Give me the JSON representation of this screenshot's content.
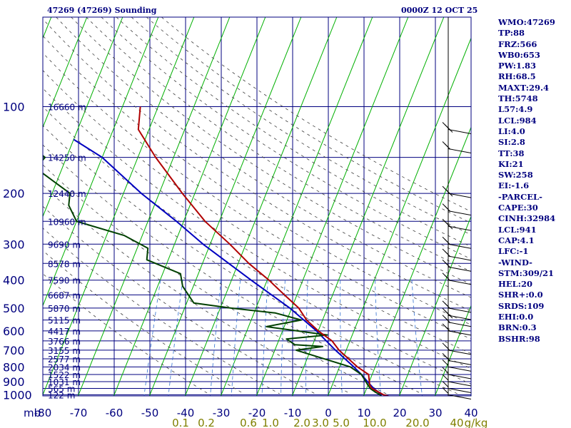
{
  "header": {
    "station": "47269 (47269) Sounding",
    "time": "0000Z 12 OCT 25"
  },
  "indices": [
    "WMO:47269",
    "TP:88",
    "FRZ:566",
    "WB0:653",
    "PW:1.83",
    "RH:68.5",
    "MAXT:29.4",
    "TH:5748",
    "L57:4.9",
    "LCL:984",
    "LI:4.0",
    "SI:2.8",
    "TT:38",
    "KI:21",
    "SW:258",
    "EI:-1.6",
    "-PARCEL-",
    "CAPE:30",
    "CINH:32984",
    "LCL:941",
    "CAP:4.1",
    "LFC:-1",
    "-WIND-",
    "STM:309/21",
    "HEL:20",
    "SHR+:0.0",
    "SRDS:109",
    "EHI:0.0",
    "BRN:0.3",
    "BSHR:98"
  ],
  "colors": {
    "grid": "#00007f",
    "isotherm": "#00b000",
    "temperature": "#b00000",
    "dewpoint": "#004000",
    "parcel": "#0000c0",
    "mixing_ratio": "#3070d0",
    "dry_adiabat": "#404040",
    "mixing_label": "#7f7f00"
  },
  "chart_data": {
    "type": "line",
    "title": "",
    "xlabel": "",
    "ylabel": "mb",
    "pressure_ticks": [
      100,
      200,
      300,
      400,
      500,
      600,
      700,
      800,
      900,
      1000
    ],
    "temperature_ticks": [
      -80,
      -70,
      -60,
      -50,
      -40,
      -30,
      -20,
      -10,
      0,
      10,
      20,
      30,
      40
    ],
    "mixing_ratio_labels": [
      "0.1",
      "0.2",
      "0.6",
      "1.0",
      "2.0",
      "3.0",
      "5.0",
      "10.0",
      "20.0",
      "40",
      "g/kg"
    ],
    "height_labels": [
      {
        "p": 100,
        "text": "16660 m"
      },
      {
        "p": 150,
        "text": "14250 m"
      },
      {
        "p": 200,
        "text": "12440 m"
      },
      {
        "p": 250,
        "text": "10960 m"
      },
      {
        "p": 300,
        "text": "9690 m"
      },
      {
        "p": 350,
        "text": "8578 m"
      },
      {
        "p": 400,
        "text": "7590 m"
      },
      {
        "p": 450,
        "text": "6687 m"
      },
      {
        "p": 500,
        "text": "5870 m"
      },
      {
        "p": 550,
        "text": "5115 m"
      },
      {
        "p": 600,
        "text": "4417 m"
      },
      {
        "p": 650,
        "text": "3766 m"
      },
      {
        "p": 700,
        "text": "3155 m"
      },
      {
        "p": 750,
        "text": "2577 m"
      },
      {
        "p": 800,
        "text": "2034 m"
      },
      {
        "p": 850,
        "text": "1522 m"
      },
      {
        "p": 900,
        "text": "1031 m"
      },
      {
        "p": 950,
        "text": "565 m"
      },
      {
        "p": 1000,
        "text": "122 m"
      }
    ],
    "temperature_profile": [
      {
        "p": 1010,
        "t": 27
      },
      {
        "p": 1000,
        "t": 25.5
      },
      {
        "p": 950,
        "t": 21.5
      },
      {
        "p": 925,
        "t": 20.5
      },
      {
        "p": 850,
        "t": 19
      },
      {
        "p": 800,
        "t": 15
      },
      {
        "p": 700,
        "t": 8
      },
      {
        "p": 650,
        "t": 5
      },
      {
        "p": 600,
        "t": 0
      },
      {
        "p": 550,
        "t": -4.5
      },
      {
        "p": 500,
        "t": -8
      },
      {
        "p": 450,
        "t": -13.5
      },
      {
        "p": 400,
        "t": -19.5
      },
      {
        "p": 350,
        "t": -27
      },
      {
        "p": 300,
        "t": -34.5
      },
      {
        "p": 250,
        "t": -44
      },
      {
        "p": 200,
        "t": -53.5
      },
      {
        "p": 150,
        "t": -65
      },
      {
        "p": 120,
        "t": -73
      },
      {
        "p": 100,
        "t": -75
      }
    ],
    "dewpoint_profile": [
      {
        "p": 1010,
        "t": 25
      },
      {
        "p": 1000,
        "t": 24.5
      },
      {
        "p": 980,
        "t": 23
      },
      {
        "p": 950,
        "t": 21
      },
      {
        "p": 925,
        "t": 20
      },
      {
        "p": 850,
        "t": 17
      },
      {
        "p": 800,
        "t": 13
      },
      {
        "p": 700,
        "t": -4
      },
      {
        "p": 680,
        "t": 3
      },
      {
        "p": 670,
        "t": -5
      },
      {
        "p": 640,
        "t": -8
      },
      {
        "p": 620,
        "t": 3
      },
      {
        "p": 580,
        "t": -15
      },
      {
        "p": 550,
        "t": -6
      },
      {
        "p": 520,
        "t": -14
      },
      {
        "p": 500,
        "t": -27
      },
      {
        "p": 480,
        "t": -38
      },
      {
        "p": 420,
        "t": -43
      },
      {
        "p": 380,
        "t": -45
      },
      {
        "p": 340,
        "t": -56
      },
      {
        "p": 310,
        "t": -57
      },
      {
        "p": 280,
        "t": -65
      },
      {
        "p": 250,
        "t": -80
      },
      {
        "p": 220,
        "t": -84
      },
      {
        "p": 200,
        "t": -85
      },
      {
        "p": 170,
        "t": -95
      },
      {
        "p": 160,
        "t": -97
      },
      {
        "p": 150,
        "t": -96
      },
      {
        "p": 140,
        "t": -100
      }
    ],
    "parcel_profile": [
      {
        "p": 1000,
        "t": 25
      },
      {
        "p": 950,
        "t": 22
      },
      {
        "p": 900,
        "t": 19.5
      },
      {
        "p": 850,
        "t": 17
      },
      {
        "p": 800,
        "t": 14
      },
      {
        "p": 700,
        "t": 7
      },
      {
        "p": 600,
        "t": -0.5
      },
      {
        "p": 500,
        "t": -10.5
      },
      {
        "p": 400,
        "t": -24.5
      },
      {
        "p": 300,
        "t": -42
      },
      {
        "p": 250,
        "t": -52
      },
      {
        "p": 200,
        "t": -65
      },
      {
        "p": 150,
        "t": -80
      },
      {
        "p": 130,
        "t": -90
      }
    ]
  }
}
